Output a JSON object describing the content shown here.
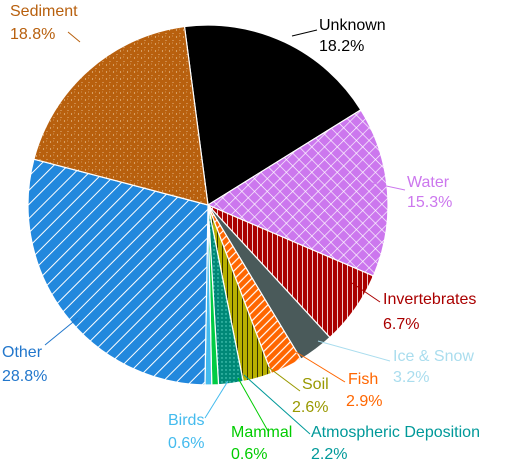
{
  "chart_data": {
    "type": "pie",
    "title": "",
    "legend": "none",
    "slices": [
      {
        "label": "Unknown",
        "pct_label": "18.2%",
        "value": 18.2,
        "color": "#000000",
        "text_color": "#000000",
        "pattern": "solid"
      },
      {
        "label": "Water",
        "pct_label": "15.3%",
        "value": 15.3,
        "color": "#cc77ee",
        "text_color": "#cc77ee",
        "pattern": "crosshatch"
      },
      {
        "label": "Invertebrates",
        "pct_label": "6.7%",
        "value": 6.7,
        "color": "#aa0000",
        "text_color": "#aa0000",
        "pattern": "vertical-lines"
      },
      {
        "label": "Ice & Snow",
        "pct_label": "3.2%",
        "value": 3.2,
        "color": "#4a5a5a",
        "text_color": "#aaddee",
        "pattern": "solid"
      },
      {
        "label": "Fish",
        "pct_label": "2.9%",
        "value": 2.9,
        "color": "#ff6600",
        "text_color": "#ff6600",
        "pattern": "diagonal"
      },
      {
        "label": "Soil",
        "pct_label": "2.6%",
        "value": 2.6,
        "color": "#b8b000",
        "text_color": "#999900",
        "pattern": "vertical-lines"
      },
      {
        "label": "Atmospheric Deposition",
        "pct_label": "2.2%",
        "value": 2.2,
        "color": "#008877",
        "text_color": "#009999",
        "pattern": "dots"
      },
      {
        "label": "Mammal",
        "pct_label": "0.6%",
        "value": 0.6,
        "color": "#00cc44",
        "text_color": "#00cc00",
        "pattern": "solid"
      },
      {
        "label": "Birds",
        "pct_label": "0.6%",
        "value": 0.6,
        "color": "#44bbee",
        "text_color": "#44bbee",
        "pattern": "solid"
      },
      {
        "label": "Other",
        "pct_label": "28.8%",
        "value": 28.8,
        "color": "#2288dd",
        "text_color": "#2277cc",
        "pattern": "diagonal"
      },
      {
        "label": "Sediment",
        "pct_label": "18.8%",
        "value": 18.8,
        "color": "#b8600e",
        "text_color": "#b8600e",
        "pattern": "speckle"
      }
    ]
  }
}
